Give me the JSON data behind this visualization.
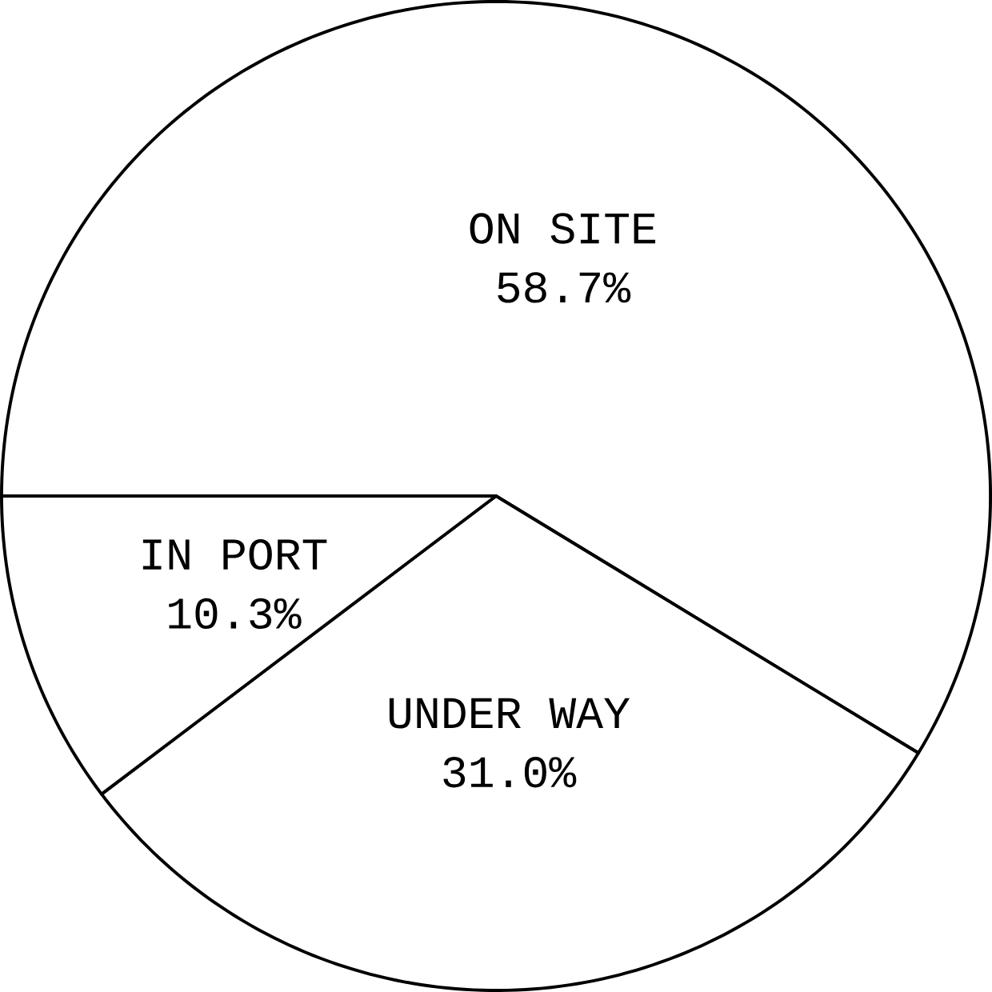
{
  "chart_data": {
    "type": "pie",
    "categories": [
      "ON SITE",
      "UNDER WAY",
      "IN PORT"
    ],
    "values": [
      58.7,
      31.0,
      10.3
    ],
    "value_labels": [
      "58.7%",
      "31.0%",
      "10.3%"
    ],
    "colors": [
      "#ffffff",
      "#ffffff",
      "#ffffff"
    ]
  }
}
